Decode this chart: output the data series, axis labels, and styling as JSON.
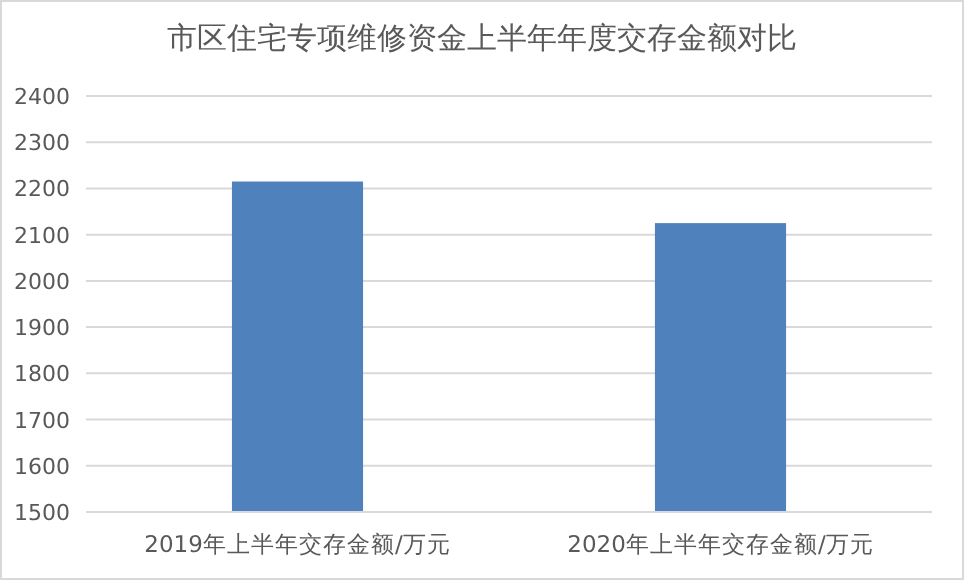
{
  "chart_data": {
    "type": "bar",
    "title": "市区住宅专项维修资金上半年年度交存金额对比",
    "categories": [
      "2019年上半年交存金额/万元",
      "2020年上半年交存金额/万元"
    ],
    "values": [
      2215,
      2125
    ],
    "color": "#4f81bd",
    "ylim": [
      1500,
      2400
    ],
    "yticks": [
      1500,
      1600,
      1700,
      1800,
      1900,
      2000,
      2100,
      2200,
      2300,
      2400
    ],
    "grid": "y"
  }
}
